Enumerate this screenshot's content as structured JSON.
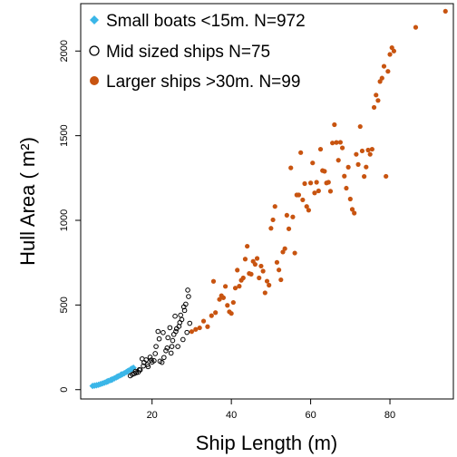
{
  "chart_data": {
    "type": "scatter",
    "xlabel": "Ship Length (m)",
    "ylabel": "Hull Area ( m²)",
    "xlim": [
      2.0,
      96.0
    ],
    "ylim": [
      -55.0,
      2280.0
    ],
    "xticks": [
      20,
      40,
      60,
      80
    ],
    "yticks": [
      0,
      500,
      1000,
      1500,
      2000
    ],
    "grid": false,
    "legend_position": "top-left",
    "series": [
      {
        "name": "Small boats <15m. N=972",
        "marker": "diamond",
        "color": "#3ab6e8",
        "points": [
          [
            5.0,
            22
          ],
          [
            5.5,
            24
          ],
          [
            6.0,
            26
          ],
          [
            6.5,
            29
          ],
          [
            7.0,
            33
          ],
          [
            7.5,
            37
          ],
          [
            8.0,
            41
          ],
          [
            8.5,
            46
          ],
          [
            9.0,
            51
          ],
          [
            9.5,
            56
          ],
          [
            10.0,
            61
          ],
          [
            10.5,
            67
          ],
          [
            11.0,
            73
          ],
          [
            11.5,
            79
          ],
          [
            12.0,
            85
          ],
          [
            12.5,
            91
          ],
          [
            13.0,
            97
          ],
          [
            13.5,
            104
          ],
          [
            14.0,
            111
          ],
          [
            14.5,
            118
          ],
          [
            15.0,
            124
          ],
          [
            15.3,
            129
          ],
          [
            14.8,
            123
          ],
          [
            13.8,
            108
          ],
          [
            12.2,
            89
          ],
          [
            11.2,
            76
          ],
          [
            9.8,
            59
          ],
          [
            8.8,
            49
          ]
        ]
      },
      {
        "name": "Mid sized ships N=75",
        "marker": "open-circle",
        "color": "#000000",
        "points": [
          [
            14.5,
            82
          ],
          [
            15.0,
            90
          ],
          [
            15.5,
            95
          ],
          [
            16.0,
            100
          ],
          [
            16.5,
            103
          ],
          [
            17.0,
            116
          ],
          [
            17.5,
            182
          ],
          [
            18.0,
            160
          ],
          [
            18.5,
            176
          ],
          [
            19.0,
            136
          ],
          [
            19.5,
            192
          ],
          [
            20.0,
            163
          ],
          [
            20.5,
            171
          ],
          [
            21.0,
            255
          ],
          [
            21.5,
            344
          ],
          [
            22.0,
            168
          ],
          [
            22.5,
            161
          ],
          [
            23.0,
            190
          ],
          [
            23.5,
            230
          ],
          [
            24.0,
            307
          ],
          [
            24.5,
            366
          ],
          [
            25.0,
            255
          ],
          [
            25.5,
            326
          ],
          [
            26.0,
            344
          ],
          [
            26.5,
            255
          ],
          [
            27.0,
            396
          ],
          [
            27.5,
            414
          ],
          [
            28.0,
            489
          ],
          [
            28.5,
            505
          ],
          [
            29.0,
            588
          ],
          [
            29.5,
            392
          ],
          [
            28.8,
            338
          ],
          [
            27.8,
            296
          ],
          [
            26.8,
            374
          ],
          [
            25.8,
            434
          ],
          [
            24.8,
            216
          ],
          [
            23.8,
            246
          ],
          [
            22.8,
            337
          ],
          [
            21.8,
            300
          ],
          [
            20.8,
            213
          ],
          [
            19.8,
            175
          ],
          [
            18.8,
            148
          ],
          [
            17.8,
            140
          ],
          [
            16.8,
            118
          ],
          [
            15.8,
            108
          ],
          [
            29.2,
            550
          ],
          [
            28.2,
            468
          ],
          [
            27.2,
            440
          ],
          [
            26.2,
            360
          ],
          [
            25.2,
            290
          ]
        ]
      },
      {
        "name": "Larger ships >30m. N=99",
        "marker": "filled-circle",
        "color": "#c85410",
        "points": [
          [
            30.0,
            343
          ],
          [
            31.0,
            356
          ],
          [
            32.0,
            365
          ],
          [
            33.0,
            405
          ],
          [
            34.0,
            372
          ],
          [
            35.0,
            437
          ],
          [
            35.5,
            640
          ],
          [
            36.0,
            455
          ],
          [
            37.0,
            533
          ],
          [
            37.5,
            555
          ],
          [
            38.0,
            543
          ],
          [
            38.5,
            610
          ],
          [
            39.0,
            498
          ],
          [
            39.5,
            460
          ],
          [
            40.0,
            450
          ],
          [
            40.5,
            515
          ],
          [
            41.0,
            600
          ],
          [
            41.5,
            706
          ],
          [
            42.0,
            611
          ],
          [
            42.5,
            646
          ],
          [
            43.0,
            660
          ],
          [
            43.5,
            771
          ],
          [
            44.0,
            847
          ],
          [
            44.5,
            686
          ],
          [
            45.0,
            682
          ],
          [
            45.5,
            758
          ],
          [
            46.0,
            740
          ],
          [
            46.5,
            775
          ],
          [
            47.0,
            660
          ],
          [
            47.5,
            730
          ],
          [
            48.0,
            700
          ],
          [
            48.5,
            572
          ],
          [
            49.0,
            641
          ],
          [
            49.5,
            617
          ],
          [
            50.0,
            953
          ],
          [
            50.5,
            1003
          ],
          [
            51.0,
            1082
          ],
          [
            51.5,
            752
          ],
          [
            52.0,
            707
          ],
          [
            52.5,
            649
          ],
          [
            53.0,
            813
          ],
          [
            53.5,
            833
          ],
          [
            54.0,
            1030
          ],
          [
            54.5,
            950
          ],
          [
            55.0,
            1310
          ],
          [
            55.5,
            1020
          ],
          [
            56.0,
            807
          ],
          [
            56.5,
            1150
          ],
          [
            57.0,
            1150
          ],
          [
            57.5,
            1400
          ],
          [
            58.0,
            1121
          ],
          [
            58.5,
            1217
          ],
          [
            59.0,
            1082
          ],
          [
            59.5,
            1060
          ],
          [
            60.0,
            1221
          ],
          [
            60.5,
            1339
          ],
          [
            61.0,
            1162
          ],
          [
            61.5,
            1225
          ],
          [
            62.0,
            1174
          ],
          [
            62.5,
            1420
          ],
          [
            63.0,
            1294
          ],
          [
            63.5,
            1290
          ],
          [
            64.0,
            1221
          ],
          [
            64.5,
            1225
          ],
          [
            65.0,
            1172
          ],
          [
            65.5,
            1457
          ],
          [
            66.0,
            1565
          ],
          [
            66.5,
            1460
          ],
          [
            67.0,
            1355
          ],
          [
            67.5,
            1461
          ],
          [
            68.0,
            1428
          ],
          [
            68.5,
            1261
          ],
          [
            69.0,
            1190
          ],
          [
            69.5,
            1314
          ],
          [
            70.0,
            1126
          ],
          [
            70.5,
            1065
          ],
          [
            71.0,
            1043
          ],
          [
            71.5,
            1390
          ],
          [
            72.0,
            1330
          ],
          [
            72.5,
            1554
          ],
          [
            73.0,
            1410
          ],
          [
            73.5,
            1259
          ],
          [
            74.0,
            1315
          ],
          [
            74.5,
            1415
          ],
          [
            75.0,
            1390
          ],
          [
            75.5,
            1420
          ],
          [
            76.0,
            1667
          ],
          [
            76.5,
            1740
          ],
          [
            77.0,
            1708
          ],
          [
            77.5,
            1820
          ],
          [
            78.0,
            1840
          ],
          [
            78.5,
            1910
          ],
          [
            79.0,
            1260
          ],
          [
            79.5,
            1880
          ],
          [
            80.0,
            1980
          ],
          [
            80.5,
            2020
          ],
          [
            81.0,
            2000
          ],
          [
            86.5,
            2140
          ],
          [
            94.0,
            2235
          ]
        ]
      }
    ]
  }
}
